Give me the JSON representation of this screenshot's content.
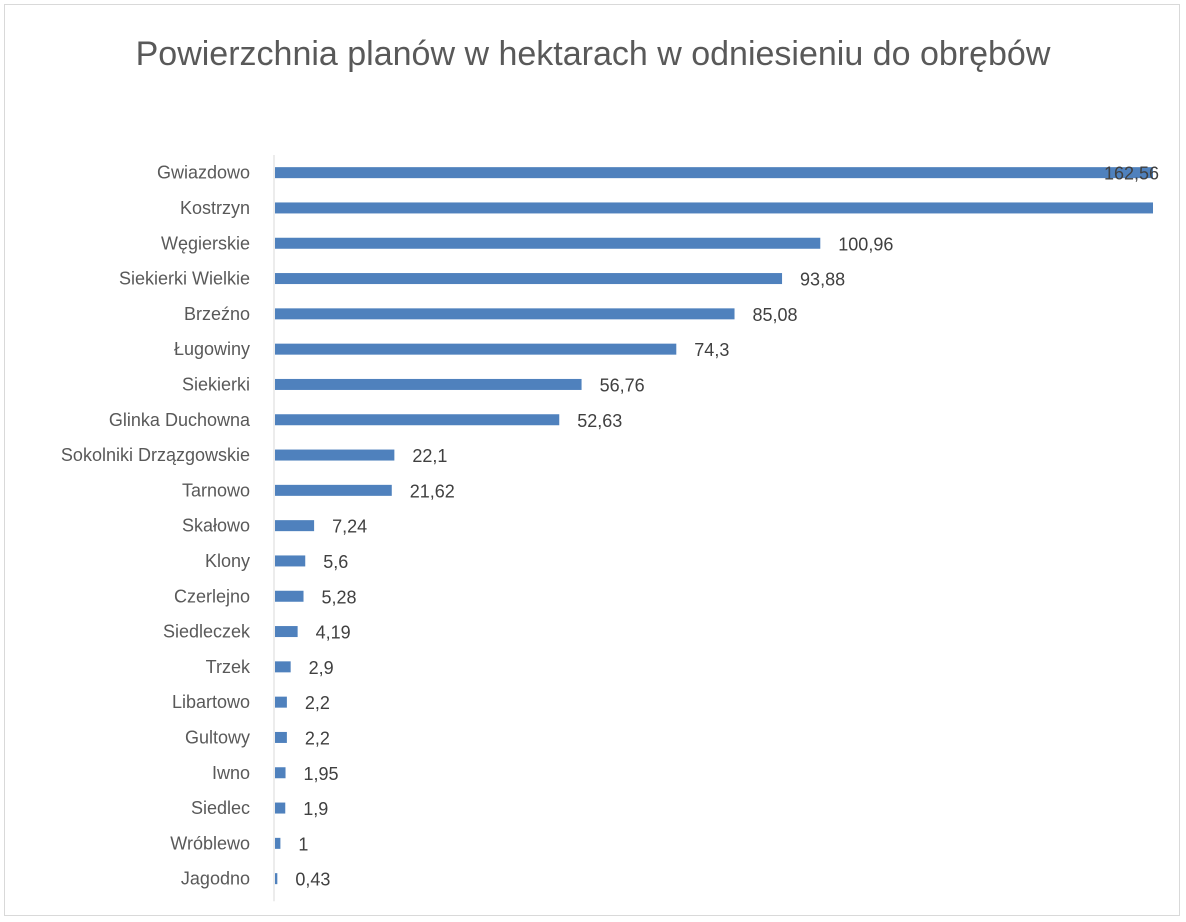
{
  "chart_data": {
    "type": "bar",
    "orientation": "horizontal",
    "title": "Powierzchnia planów w hektarach w odniesieniu do obrębów",
    "xlabel": "",
    "ylabel": "",
    "categories": [
      "Gwiazdowo",
      "Kostrzyn",
      "Węgierskie",
      "Siekierki Wielkie",
      "Brzeźno",
      "Ługowiny",
      "Siekierki",
      "Glinka Duchowna",
      "Sokolniki Drzązgowskie",
      "Tarnowo",
      "Skałowo",
      "Klony",
      "Czerlejno",
      "Siedleczek",
      "Trzek",
      "Libartowo",
      "Gultowy",
      "Iwno",
      "Siedlec",
      "Wróblewo",
      "Jagodno"
    ],
    "values": [
      162.56,
      162.56,
      100.96,
      93.88,
      85.08,
      74.3,
      56.76,
      52.63,
      22.1,
      21.62,
      7.24,
      5.6,
      5.28,
      4.19,
      2.9,
      2.2,
      2.2,
      1.95,
      1.9,
      1,
      0.43
    ],
    "data_labels": [
      "162,56",
      "",
      "100,96",
      "93,88",
      "85,08",
      "74,3",
      "56,76",
      "52,63",
      "22,1",
      "21,62",
      "7,24",
      "5,6",
      "5,28",
      "4,19",
      "2,9",
      "2,2",
      "2,2",
      "1,95",
      "1,9",
      "1",
      "0,43"
    ],
    "xlim": [
      0,
      162.56
    ],
    "grid": false,
    "legend": "none",
    "bar_color": "#4f81bd"
  }
}
